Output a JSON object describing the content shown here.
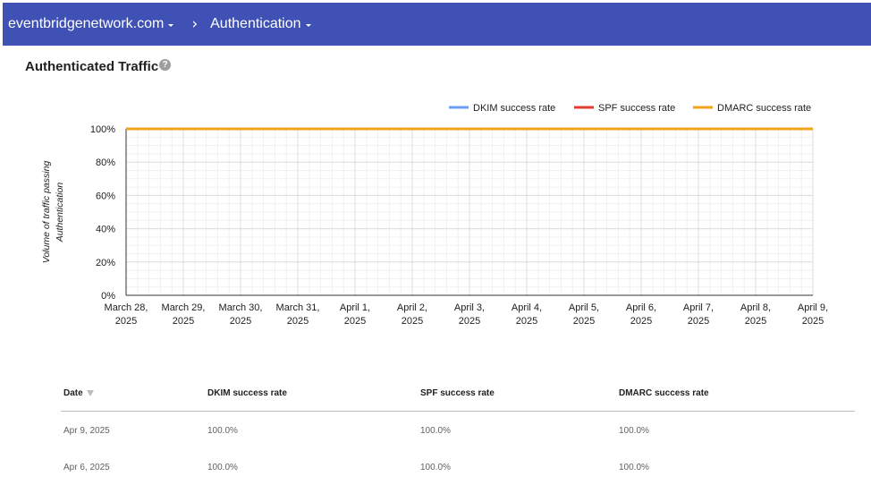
{
  "breadcrumb": {
    "domain": "eventbridgenetwork.com",
    "separator": "›",
    "section": "Authentication"
  },
  "page": {
    "title": "Authenticated Traffic",
    "help_icon": "help-circle-icon"
  },
  "colors": {
    "header_bg": "#3f51b5",
    "dkim": "#6c9ef8",
    "spf": "#e53935",
    "dmarc": "#f2a31b"
  },
  "chart_data": {
    "type": "line",
    "title": "",
    "ylabel": "Volume of traffic passing Authentication",
    "xlabel": "",
    "ylim": [
      0,
      100
    ],
    "y_ticks": [
      "0%",
      "20%",
      "40%",
      "60%",
      "80%",
      "100%"
    ],
    "categories": [
      [
        "March 28,",
        "2025"
      ],
      [
        "March 29,",
        "2025"
      ],
      [
        "March 30,",
        "2025"
      ],
      [
        "March 31,",
        "2025"
      ],
      [
        "April 1,",
        "2025"
      ],
      [
        "April 2,",
        "2025"
      ],
      [
        "April 3,",
        "2025"
      ],
      [
        "April 4,",
        "2025"
      ],
      [
        "April 5,",
        "2025"
      ],
      [
        "April 6,",
        "2025"
      ],
      [
        "April 7,",
        "2025"
      ],
      [
        "April 8,",
        "2025"
      ],
      [
        "April 9,",
        "2025"
      ]
    ],
    "series": [
      {
        "name": "DKIM success rate",
        "color": "#6c9ef8",
        "values": [
          100,
          100,
          100,
          100,
          100,
          100,
          100,
          100,
          100,
          100,
          100,
          100,
          100
        ]
      },
      {
        "name": "SPF success rate",
        "color": "#e53935",
        "values": [
          100,
          100,
          100,
          100,
          100,
          100,
          100,
          100,
          100,
          100,
          100,
          100,
          100
        ]
      },
      {
        "name": "DMARC success rate",
        "color": "#f2a31b",
        "values": [
          100,
          100,
          100,
          100,
          100,
          100,
          100,
          100,
          100,
          100,
          100,
          100,
          100
        ]
      }
    ],
    "legend_position": "top-right",
    "grid": true
  },
  "table": {
    "columns": [
      "Date",
      "DKIM success rate",
      "SPF success rate",
      "DMARC success rate"
    ],
    "rows": [
      [
        "Apr 9, 2025",
        "100.0%",
        "100.0%",
        "100.0%"
      ],
      [
        "Apr 6, 2025",
        "100.0%",
        "100.0%",
        "100.0%"
      ]
    ]
  }
}
